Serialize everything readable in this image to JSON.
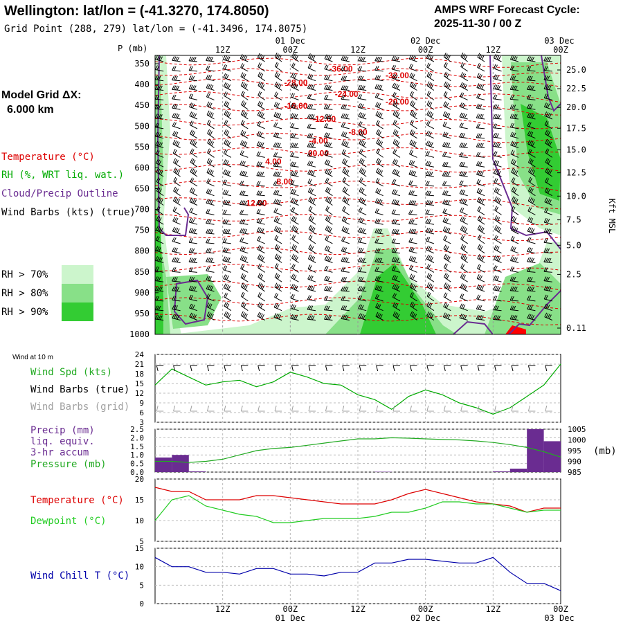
{
  "header": {
    "title": "Wellington:  lat/lon = (-41.3270, 174.8050)",
    "subtitle": "Grid Point (288, 279) lat/lon = (-41.3496, 174.8075)",
    "cycle_label": "AMPS WRF Forecast Cycle:",
    "cycle_value": "2025-11-30 / 00  Z",
    "grid_label": "Model Grid ΔX:",
    "grid_value": "6.000 km"
  },
  "colors": {
    "temperature": "#dd0000",
    "rh": "#00aa00",
    "cloud": "#6a2c91",
    "wind": "#000000",
    "wind_grid": "#a0a0a0",
    "precip_bar": "#6a2c91",
    "pressure": "#22aa22",
    "dewpoint": "#22cc22",
    "windchill": "#0000aa",
    "rh70": "#ccf5cc",
    "rh80": "#88e088",
    "rh90": "#33cc33"
  },
  "legend": {
    "temperature": "Temperature (°C)",
    "rh": "RH (%, WRT liq. wat.)",
    "cloud": "Cloud/Precip Outline",
    "wind": "Wind Barbs (kts) (true)",
    "rh70": "RH > 70%",
    "rh80": "RH > 80%",
    "rh90": "RH > 90%"
  },
  "time_axis": {
    "labels": [
      "12Z",
      "00Z",
      "12Z",
      "00Z",
      "12Z",
      "00Z"
    ],
    "dates": [
      "01 Dec",
      "02 Dec",
      "03 Dec"
    ],
    "hours": [
      12,
      24,
      36,
      48,
      60,
      72
    ]
  },
  "chart_data": [
    {
      "id": "cross_section",
      "type": "heatmap",
      "ylabel": "P (mb)",
      "y2label": "Kft MSL",
      "pressure_ticks": [
        "350",
        "400",
        "450",
        "500",
        "550",
        "600",
        "650",
        "700",
        "750",
        "800",
        "850",
        "900",
        "950",
        "1000"
      ],
      "height_ticks": [
        "25.0",
        "22.5",
        "20.0",
        "17.5",
        "15.0",
        "12.5",
        "10.0",
        "7.5",
        "5.0",
        "2.5",
        "0.11"
      ],
      "height_tick_pressures": [
        365,
        410,
        455,
        505,
        557,
        612,
        668,
        725,
        786,
        856,
        985
      ],
      "temperature_labels": [
        {
          "text": "-36.00",
          "hour": 33,
          "p": 369
        },
        {
          "text": "-32.00",
          "hour": 43,
          "p": 385
        },
        {
          "text": "-28.00",
          "hour": 25,
          "p": 402
        },
        {
          "text": "-24.00",
          "hour": 34,
          "p": 430
        },
        {
          "text": "-20.00",
          "hour": 43,
          "p": 448
        },
        {
          "text": "-16.00",
          "hour": 25,
          "p": 458
        },
        {
          "text": "-12.00",
          "hour": 30,
          "p": 490
        },
        {
          "text": "-8.00",
          "hour": 36,
          "p": 521
        },
        {
          "text": "-4.00",
          "hour": 29,
          "p": 542
        },
        {
          "text": "00.00",
          "hour": 29,
          "p": 572
        },
        {
          "text": "4.00",
          "hour": 21,
          "p": 592
        },
        {
          "text": "8.00",
          "hour": 23,
          "p": 640
        },
        {
          "text": "12.00",
          "hour": 18,
          "p": 692
        }
      ]
    },
    {
      "id": "wind_10m",
      "type": "line",
      "title": "Wind at 10 m",
      "labels": [
        "Wind Spd (kts)",
        "Wind Barbs (true)",
        "Wind Barbs (grid)"
      ],
      "yticks": [
        "24",
        "21",
        "18",
        "15",
        "12",
        "9",
        "6",
        "3"
      ],
      "ylim": [
        3,
        24
      ],
      "x": [
        0,
        3,
        6,
        9,
        12,
        15,
        18,
        21,
        24,
        27,
        30,
        33,
        36,
        39,
        42,
        45,
        48,
        51,
        54,
        57,
        60,
        63,
        66,
        69,
        72
      ],
      "values": [
        14.5,
        19.5,
        17,
        14.5,
        15.5,
        16,
        14,
        15.5,
        18.5,
        17,
        15,
        14.5,
        11.5,
        10,
        7,
        11,
        13,
        11.5,
        9,
        7.5,
        5.5,
        7.5,
        11,
        14.5,
        21
      ]
    },
    {
      "id": "precip_pressure",
      "type": "bar",
      "labels": [
        "Precip (mm)",
        "liq. equiv.",
        "3-hr accum",
        "Pressure (mb)"
      ],
      "y2label": "(mb)",
      "yticks": [
        "2.5",
        "2.0",
        "1.5",
        "1.0",
        "0.5",
        "0.0"
      ],
      "ylim": [
        0,
        2.5
      ],
      "y2ticks": [
        "1005",
        "1000",
        "995",
        "990",
        "985"
      ],
      "y2lim": [
        985,
        1005
      ],
      "bars": [
        {
          "start": 0,
          "end": 3,
          "value": 0.85
        },
        {
          "start": 3,
          "end": 6,
          "value": 1.0
        },
        {
          "start": 6,
          "end": 9,
          "value": 0.04
        },
        {
          "start": 39,
          "end": 42,
          "value": 0.02
        },
        {
          "start": 60,
          "end": 63,
          "value": 0.04
        },
        {
          "start": 63,
          "end": 66,
          "value": 0.2
        },
        {
          "start": 66,
          "end": 69,
          "value": 2.5
        },
        {
          "start": 69,
          "end": 72,
          "value": 1.8
        }
      ],
      "pressure_x": [
        0,
        3,
        6,
        9,
        12,
        15,
        18,
        21,
        24,
        27,
        30,
        33,
        36,
        39,
        42,
        45,
        48,
        51,
        54,
        57,
        60,
        63,
        66,
        69,
        72
      ],
      "pressure_values": [
        990,
        990,
        989.5,
        990,
        991,
        993,
        995,
        996,
        996.5,
        997.5,
        998.5,
        999.5,
        1000.5,
        1000.5,
        1001,
        1000.8,
        1000.5,
        1000.2,
        1000,
        999.5,
        998.8,
        997.8,
        996.5,
        994.5,
        992
      ]
    },
    {
      "id": "temp_dewpoint",
      "type": "line",
      "labels": [
        "Temperature (°C)",
        "Dewpoint (°C)"
      ],
      "yticks": [
        "20",
        "15",
        "10",
        "5"
      ],
      "ylim": [
        5,
        20
      ],
      "series": [
        {
          "name": "Temperature",
          "x": [
            0,
            3,
            6,
            9,
            12,
            15,
            18,
            21,
            24,
            27,
            30,
            33,
            36,
            39,
            42,
            45,
            48,
            51,
            54,
            57,
            60,
            63,
            66,
            69,
            72
          ],
          "values": [
            18,
            17,
            17,
            15,
            15,
            15,
            16,
            16,
            15.5,
            15,
            14.5,
            14,
            14,
            14,
            15,
            16.5,
            17.5,
            16.5,
            15.5,
            14.5,
            14,
            13.5,
            12,
            13,
            13
          ]
        },
        {
          "name": "Dewpoint",
          "x": [
            0,
            3,
            6,
            9,
            12,
            15,
            18,
            21,
            24,
            27,
            30,
            33,
            36,
            39,
            42,
            45,
            48,
            51,
            54,
            57,
            60,
            63,
            66,
            69,
            72
          ],
          "values": [
            10,
            15,
            16,
            13.5,
            12.5,
            11.5,
            11,
            9.5,
            9.5,
            10,
            10.5,
            10.5,
            10.5,
            11,
            12,
            12,
            13,
            14.5,
            14.5,
            14,
            14,
            13,
            12,
            12.5,
            12.5
          ]
        }
      ]
    },
    {
      "id": "wind_chill",
      "type": "line",
      "labels": [
        "Wind Chill T (°C)"
      ],
      "yticks": [
        "15",
        "10",
        "5",
        "0"
      ],
      "ylim": [
        0,
        15
      ],
      "x": [
        0,
        3,
        6,
        9,
        12,
        15,
        18,
        21,
        24,
        27,
        30,
        33,
        36,
        39,
        42,
        45,
        48,
        51,
        54,
        57,
        60,
        63,
        66,
        69,
        72
      ],
      "values": [
        12.5,
        10,
        10,
        8.5,
        8.5,
        8,
        9.5,
        9.5,
        8,
        8,
        7.5,
        8.5,
        8.5,
        11,
        11,
        12,
        12,
        11.5,
        11,
        11,
        12.5,
        8.5,
        5.5,
        5.5,
        3.5
      ]
    }
  ]
}
